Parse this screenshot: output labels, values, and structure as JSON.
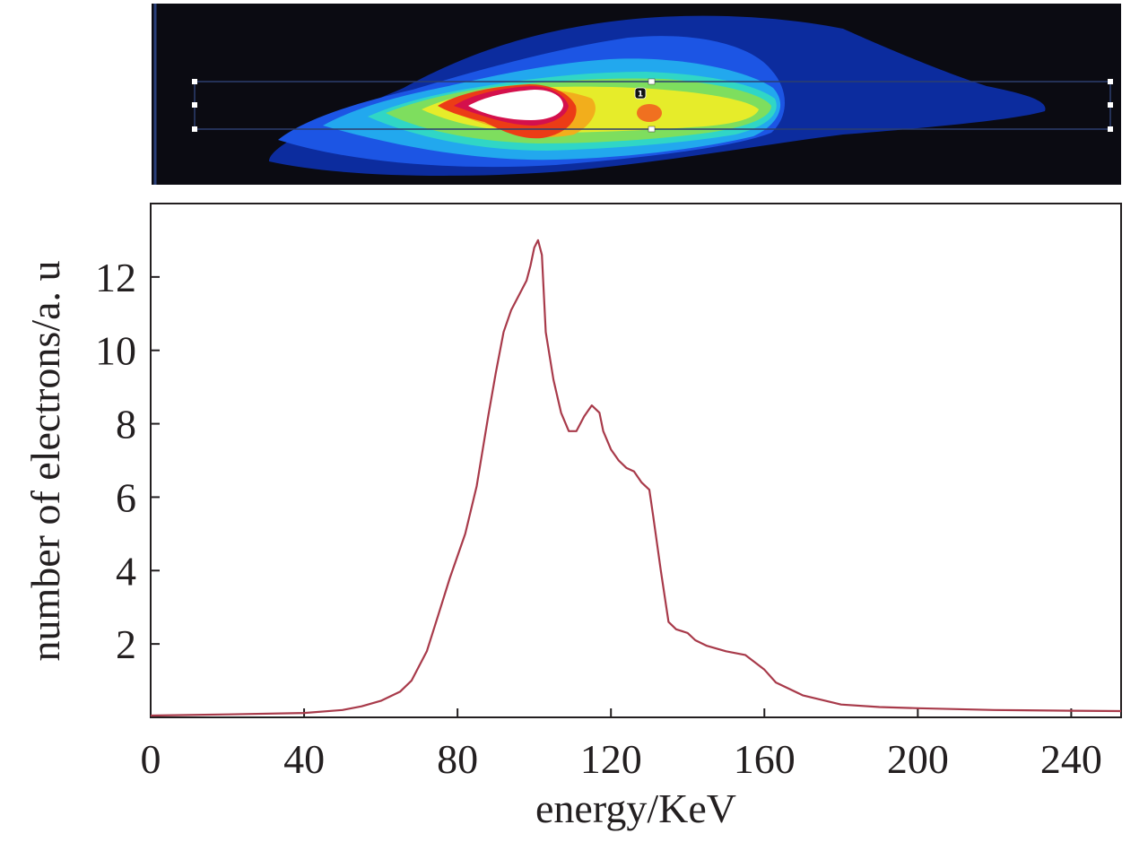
{
  "spectrum_image": {
    "marker_label": "1",
    "colormap": [
      "#0a0a12",
      "#0a2aa0",
      "#1f5ae8",
      "#1ea8f0",
      "#2fd6c8",
      "#7de060",
      "#e8ee2a",
      "#f2b21c",
      "#ee3d16",
      "#d4104a",
      "#ffffff"
    ]
  },
  "chart_data": {
    "type": "line",
    "xlabel": "energy/KeV",
    "ylabel": "number of electrons/a. u",
    "xlim": [
      0,
      253
    ],
    "ylim": [
      0,
      14
    ],
    "x_ticks": [
      0,
      40,
      80,
      120,
      160,
      200,
      240
    ],
    "y_ticks": [
      2,
      4,
      6,
      8,
      10,
      12
    ],
    "grid": false,
    "line_color": "#a83a4a",
    "series": [
      {
        "x": [
          0,
          20,
          40,
          50,
          55,
          60,
          65,
          68,
          72,
          75,
          78,
          82,
          85,
          88,
          90,
          92,
          94,
          96,
          98,
          99,
          100,
          101,
          102,
          103,
          105,
          107,
          109,
          111,
          113,
          115,
          117,
          118,
          120,
          122,
          124,
          126,
          128,
          130,
          131,
          133,
          135,
          137,
          140,
          142,
          145,
          150,
          155,
          160,
          163,
          170,
          180,
          190,
          200,
          220,
          240,
          253
        ],
        "y": [
          0.05,
          0.08,
          0.12,
          0.2,
          0.3,
          0.45,
          0.7,
          1.0,
          1.8,
          2.8,
          3.8,
          5.0,
          6.3,
          8.2,
          9.4,
          10.5,
          11.1,
          11.5,
          11.9,
          12.3,
          12.8,
          13.0,
          12.6,
          10.5,
          9.2,
          8.3,
          7.8,
          7.8,
          8.2,
          8.5,
          8.3,
          7.8,
          7.3,
          7.0,
          6.8,
          6.7,
          6.4,
          6.2,
          5.5,
          4.0,
          2.6,
          2.4,
          2.3,
          2.1,
          1.95,
          1.8,
          1.7,
          1.3,
          0.95,
          0.6,
          0.35,
          0.28,
          0.25,
          0.2,
          0.18,
          0.17
        ]
      }
    ]
  }
}
